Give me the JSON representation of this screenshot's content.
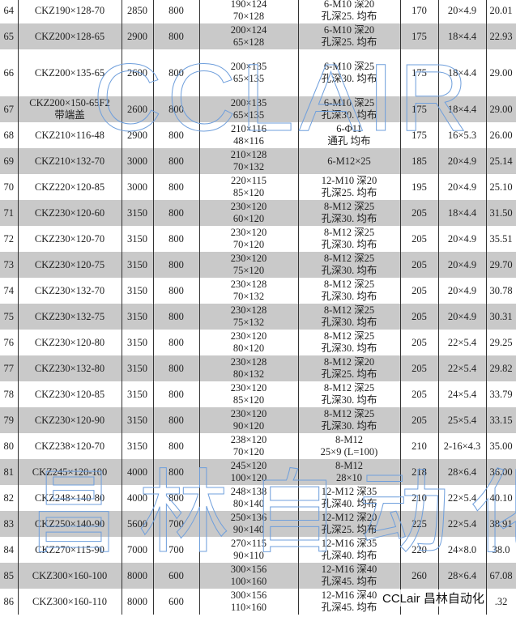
{
  "rows": [
    {
      "no": "64",
      "model": "CKZ190×128-70",
      "c3": "2850",
      "c4": "800",
      "dim1": "190×124",
      "dim2": "70×128",
      "hole1": "6-M10 深20",
      "hole2": "孔深25. 均布",
      "c7": "170",
      "c8": "20×4.9",
      "c9": "20.01"
    },
    {
      "no": "65",
      "model": "CKZ200×128-65",
      "c3": "2900",
      "c4": "800",
      "dim1": "200×124",
      "dim2": "65×128",
      "hole1": "6-M10 深20",
      "hole2": "孔深25. 均布",
      "c7": "175",
      "c8": "18×4.4",
      "c9": "22.93"
    },
    {
      "no": "66",
      "model": "CKZ200×135-65",
      "c3": "2600",
      "c4": "800",
      "dim1": "200×135",
      "dim2": "65×135",
      "hole1": "6-M10 深25",
      "hole2": "孔深30. 均布",
      "c7": "175",
      "c8": "18×4.4",
      "c9": "29.00"
    },
    {
      "no": "67",
      "model": "CKZ200×150-65F2",
      "model2": "带端盖",
      "c3": "2600",
      "c4": "800",
      "dim1": "200×135",
      "dim2": "65×135",
      "hole1": "6-M10 深25",
      "hole2": "孔深30. 均布",
      "c7": "175",
      "c8": "18×4.4",
      "c9": "29.00"
    },
    {
      "no": "68",
      "model": "CKZ210×116-48",
      "c3": "2900",
      "c4": "800",
      "dim1": "210×116",
      "dim2": "48×116",
      "hole1": "6-Φ11",
      "hole2": "通孔 均布",
      "c7": "175",
      "c8": "16×5.3",
      "c9": "26.00"
    },
    {
      "no": "69",
      "model": "CKZ210×132-70",
      "c3": "3000",
      "c4": "800",
      "dim1": "210×128",
      "dim2": "70×132",
      "hole1": "6-M12×25",
      "hole2": "",
      "c7": "185",
      "c8": "20×4.9",
      "c9": "25.14"
    },
    {
      "no": "70",
      "model": "CKZ220×120-85",
      "c3": "3000",
      "c4": "800",
      "dim1": "220×115",
      "dim2": "85×120",
      "hole1": "12-M10 深20",
      "hole2": "孔深25. 均布",
      "c7": "195",
      "c8": "20×4.9",
      "c9": "25.10"
    },
    {
      "no": "71",
      "model": "CKZ230×120-60",
      "c3": "3150",
      "c4": "800",
      "dim1": "230×120",
      "dim2": "60×120",
      "hole1": "8-M12 深25",
      "hole2": "孔深30. 均布",
      "c7": "205",
      "c8": "18×4.4",
      "c9": "31.50"
    },
    {
      "no": "72",
      "model": "CKZ230×120-70",
      "c3": "3150",
      "c4": "800",
      "dim1": "230×120",
      "dim2": "70×120",
      "hole1": "8-M12 深25",
      "hole2": "孔深30. 均布",
      "c7": "205",
      "c8": "20×4.9",
      "c9": "35.51"
    },
    {
      "no": "73",
      "model": "CKZ230×120-75",
      "c3": "3150",
      "c4": "800",
      "dim1": "230×120",
      "dim2": "75×120",
      "hole1": "8-M12 深25",
      "hole2": "孔深30. 均布",
      "c7": "205",
      "c8": "20×4.9",
      "c9": "29.70"
    },
    {
      "no": "74",
      "model": "CKZ230×132-70",
      "c3": "3150",
      "c4": "800",
      "dim1": "230×128",
      "dim2": "70×132",
      "hole1": "8-M12 深25",
      "hole2": "孔深30. 均布",
      "c7": "205",
      "c8": "20×4.9",
      "c9": "30.78"
    },
    {
      "no": "75",
      "model": "CKZ230×132-75",
      "c3": "3150",
      "c4": "800",
      "dim1": "230×128",
      "dim2": "75×132",
      "hole1": "8-M12 深25",
      "hole2": "孔深30. 均布",
      "c7": "205",
      "c8": "20×4.9",
      "c9": "30.31"
    },
    {
      "no": "76",
      "model": "CKZ230×120-80",
      "c3": "3150",
      "c4": "800",
      "dim1": "230×120",
      "dim2": "80×120",
      "hole1": "8-M12 深25",
      "hole2": "孔深30. 均布",
      "c7": "205",
      "c8": "22×5.4",
      "c9": "29.25"
    },
    {
      "no": "77",
      "model": "CKZ230×132-80",
      "c3": "3150",
      "c4": "800",
      "dim1": "230×128",
      "dim2": "80×132",
      "hole1": "8-M12 深20",
      "hole2": "孔深25. 均布",
      "c7": "205",
      "c8": "22×5.4",
      "c9": "29.82"
    },
    {
      "no": "78",
      "model": "CKZ230×120-85",
      "c3": "3150",
      "c4": "800",
      "dim1": "230×120",
      "dim2": "85×120",
      "hole1": "8-M12 深25",
      "hole2": "孔深30. 均布",
      "c7": "205",
      "c8": "24×5.4",
      "c9": "33.79"
    },
    {
      "no": "79",
      "model": "CKZ230×120-90",
      "c3": "3150",
      "c4": "800",
      "dim1": "230×120",
      "dim2": "90×120",
      "hole1": "8-M12 深25",
      "hole2": "孔深30. 均布",
      "c7": "205",
      "c8": "25×5.4",
      "c9": "33.15"
    },
    {
      "no": "80",
      "model": "CKZ238×120-70",
      "c3": "3150",
      "c4": "800",
      "dim1": "238×120",
      "dim2": "70×120",
      "hole1": "8-M12",
      "hole2": "25×9 (L=100)",
      "c7": "210",
      "c8": "2-16×4.3",
      "c9": "35.00"
    },
    {
      "no": "81",
      "model": "CKZ245×120-100",
      "c3": "4000",
      "c4": "800",
      "dim1": "245×120",
      "dim2": "100×120",
      "hole1": "8-M12",
      "hole2": "28×10",
      "c7": "218",
      "c8": "28×6.4",
      "c9": "36.00"
    },
    {
      "no": "82",
      "model": "CKZ248×140-80",
      "c3": "4000",
      "c4": "800",
      "dim1": "248×138",
      "dim2": "80×140",
      "hole1": "12-M12 深35",
      "hole2": "孔深40. 均布",
      "c7": "210",
      "c8": "22×5.4",
      "c9": "40.10"
    },
    {
      "no": "83",
      "model": "CKZ250×140-90",
      "c3": "5600",
      "c4": "700",
      "dim1": "250×136",
      "dim2": "90×140",
      "hole1": "12-M12 深20",
      "hole2": "孔深25. 均布",
      "c7": "225",
      "c8": "22×5.4",
      "c9": "38.91"
    },
    {
      "no": "84",
      "model": "CKZ270×115-90",
      "c3": "7000",
      "c4": "700",
      "dim1": "270×115",
      "dim2": "90×110",
      "hole1": "12-M16 深35",
      "hole2": "孔深40. 均布",
      "c7": "220",
      "c8": "24×8.0",
      "c9": "38.0"
    },
    {
      "no": "85",
      "model": "CKZ300×160-100",
      "c3": "8000",
      "c4": "600",
      "dim1": "300×156",
      "dim2": "100×160",
      "hole1": "12-M16 深40",
      "hole2": "孔深45. 均布",
      "c7": "260",
      "c8": "28×6.4",
      "c9": "67.08"
    },
    {
      "no": "86",
      "model": "CKZ300×160-110",
      "c3": "8000",
      "c4": "600",
      "dim1": "300×156",
      "dim2": "110×160",
      "hole1": "12-M16 深40",
      "hole2": "孔深45. 均布",
      "c7": "",
      "c8": "",
      "c9": ".32"
    }
  ],
  "watermarks": {
    "top": "CCLAIR",
    "middle": "昌林自动化",
    "corner": "CCLair 昌林自动化"
  },
  "colors": {
    "stripe": "#c9c9c9",
    "watermark": "#6f9fdc"
  }
}
